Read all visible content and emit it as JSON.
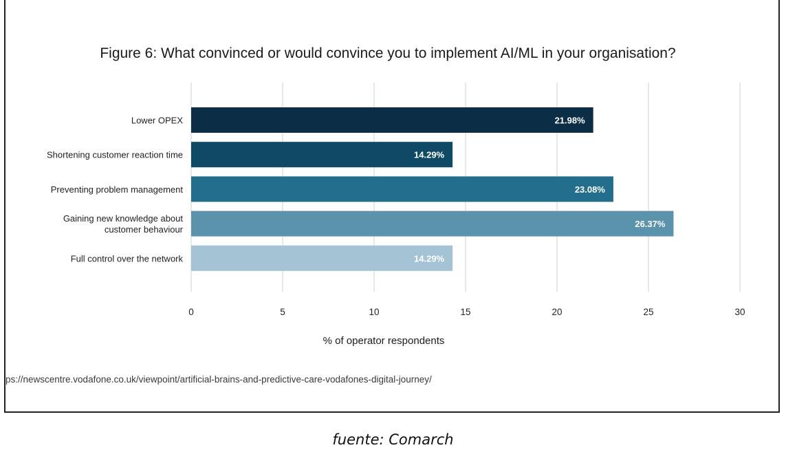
{
  "chart_data": {
    "type": "bar",
    "orientation": "horizontal",
    "title": "Figure 6: What convinced or would convince you to implement AI/ML in your organisation?",
    "xlabel": "% of operator respondents",
    "ylabel": "",
    "xlim": [
      0,
      30
    ],
    "xticks": [
      "0",
      "5",
      "10",
      "15",
      "20",
      "25",
      "30"
    ],
    "grid": "vertical",
    "categories": [
      [
        "Lower OPEX"
      ],
      [
        "Shortening customer reaction time"
      ],
      [
        "Preventing problem management"
      ],
      [
        "Gaining new knowledge about",
        "customer behaviour"
      ],
      [
        "Full control over the network"
      ]
    ],
    "values": [
      21.98,
      14.29,
      23.08,
      26.37,
      14.29
    ],
    "value_labels": [
      "21.98%",
      "14.29%",
      "23.08%",
      "26.37%",
      "14.29%"
    ],
    "colors": [
      "#0b2e46",
      "#0e4a66",
      "#236e8c",
      "#5b93ad",
      "#a4c3d4"
    ]
  },
  "source_url": "ps://newscentre.vodafone.co.uk/viewpoint/artificial-brains-and-predictive-care-vodafones-digital-journey/",
  "caption": "fuente: Comarch"
}
